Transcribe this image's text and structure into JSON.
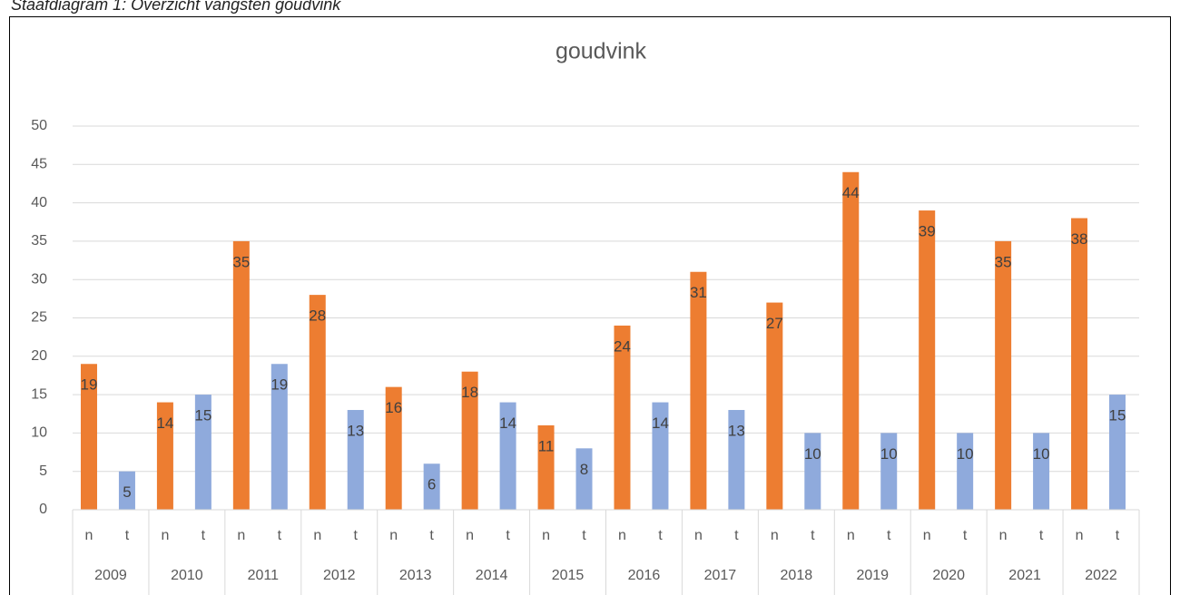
{
  "chart_data": {
    "type": "bar",
    "caption": "Staafdiagram 1: Overzicht vangsten goudvink",
    "title": "goudvink",
    "categories": [
      "2009",
      "2010",
      "2011",
      "2012",
      "2013",
      "2014",
      "2015",
      "2016",
      "2017",
      "2018",
      "2019",
      "2020",
      "2021",
      "2022"
    ],
    "series": [
      {
        "name": "n",
        "color": "#ed7d31",
        "values": [
          19,
          14,
          35,
          28,
          16,
          18,
          11,
          24,
          31,
          27,
          44,
          39,
          35,
          38
        ]
      },
      {
        "name": "t",
        "color": "#8faadc",
        "values": [
          5,
          15,
          19,
          13,
          6,
          14,
          8,
          14,
          13,
          10,
          10,
          10,
          10,
          15
        ]
      }
    ],
    "ylim": [
      0,
      50
    ],
    "yticks": [
      0,
      5,
      10,
      15,
      20,
      25,
      30,
      35,
      40,
      45,
      50
    ],
    "grid": true
  }
}
